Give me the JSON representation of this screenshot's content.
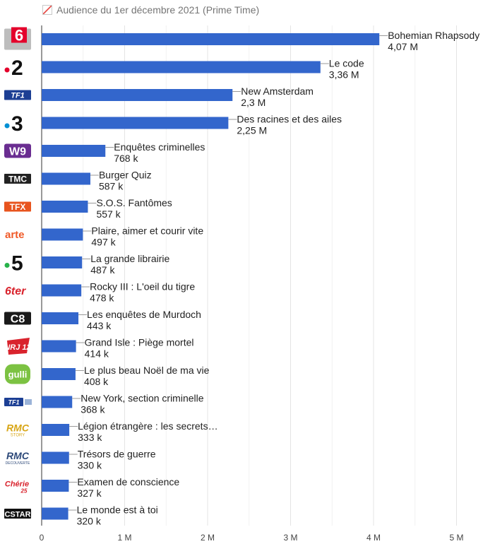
{
  "chart_data": {
    "type": "bar",
    "orientation": "horizontal",
    "title": "Audience du 1er décembre 2021 (Prime Time)",
    "legend_position": "top-left",
    "grid": true,
    "bar_color": "#3366cc",
    "xlim": [
      0,
      5500000
    ],
    "x_ticks": [
      {
        "value": 0,
        "label": "0"
      },
      {
        "value": 1000000,
        "label": "1 M"
      },
      {
        "value": 2000000,
        "label": "2 M"
      },
      {
        "value": 3000000,
        "label": "3 M"
      },
      {
        "value": 4000000,
        "label": "4 M"
      },
      {
        "value": 5000000,
        "label": "5 M"
      }
    ],
    "rows": [
      {
        "channel": "6",
        "logo_icon": "m6-logo-icon",
        "program": "Bohemian Rhapsody",
        "value": 4070000,
        "value_label": "4,07 M"
      },
      {
        "channel": "2",
        "logo_icon": "france2-logo-icon",
        "program": "Le code",
        "value": 3360000,
        "value_label": "3,36 M"
      },
      {
        "channel": "TF1",
        "logo_icon": "tf1-logo-icon",
        "program": "New Amsterdam",
        "value": 2300000,
        "value_label": "2,3 M"
      },
      {
        "channel": "3",
        "logo_icon": "france3-logo-icon",
        "program": "Des racines et des ailes",
        "value": 2250000,
        "value_label": "2,25 M"
      },
      {
        "channel": "W9",
        "logo_icon": "w9-logo-icon",
        "program": "Enquêtes criminelles",
        "value": 768000,
        "value_label": "768 k"
      },
      {
        "channel": "TMC",
        "logo_icon": "tmc-logo-icon",
        "program": "Burger Quiz",
        "value": 587000,
        "value_label": "587 k"
      },
      {
        "channel": "TFX",
        "logo_icon": "tfx-logo-icon",
        "program": "S.O.S. Fantômes",
        "value": 557000,
        "value_label": "557 k"
      },
      {
        "channel": "arte",
        "logo_icon": "arte-logo-icon",
        "program": "Plaire, aimer et courir vite",
        "value": 497000,
        "value_label": "497 k"
      },
      {
        "channel": "5",
        "logo_icon": "france5-logo-icon",
        "program": "La grande librairie",
        "value": 487000,
        "value_label": "487 k"
      },
      {
        "channel": "6ter",
        "logo_icon": "6ter-logo-icon",
        "program": "Rocky III : L'oeil du tigre",
        "value": 478000,
        "value_label": "478 k"
      },
      {
        "channel": "C8",
        "logo_icon": "c8-logo-icon",
        "program": "Les enquêtes de Murdoch",
        "value": 443000,
        "value_label": "443 k"
      },
      {
        "channel": "NRJ 12",
        "logo_icon": "nrj12-logo-icon",
        "program": "Grand Isle : Piège mortel",
        "value": 414000,
        "value_label": "414 k"
      },
      {
        "channel": "gulli",
        "logo_icon": "gulli-logo-icon",
        "program": "Le plus beau Noël de ma vie",
        "value": 408000,
        "value_label": "408 k"
      },
      {
        "channel": "TF1",
        "logo_icon": "tf1-series-films-logo-icon",
        "program": "New York, section criminelle",
        "value": 368000,
        "value_label": "368 k"
      },
      {
        "channel": "RMC STORY",
        "logo_icon": "rmc-story-logo-icon",
        "program": "Légion étrangère : les secrets…",
        "value": 333000,
        "value_label": "333 k"
      },
      {
        "channel": "RMC DECOUVERTE",
        "logo_icon": "rmc-decouverte-logo-icon",
        "program": "Trésors de guerre",
        "value": 330000,
        "value_label": "330 k"
      },
      {
        "channel": "Chérie 25",
        "logo_icon": "cherie25-logo-icon",
        "program": "Examen de conscience",
        "value": 327000,
        "value_label": "327 k"
      },
      {
        "channel": "CSTAR",
        "logo_icon": "cstar-logo-icon",
        "program": "Le monde est à toi",
        "value": 320000,
        "value_label": "320 k"
      }
    ]
  }
}
